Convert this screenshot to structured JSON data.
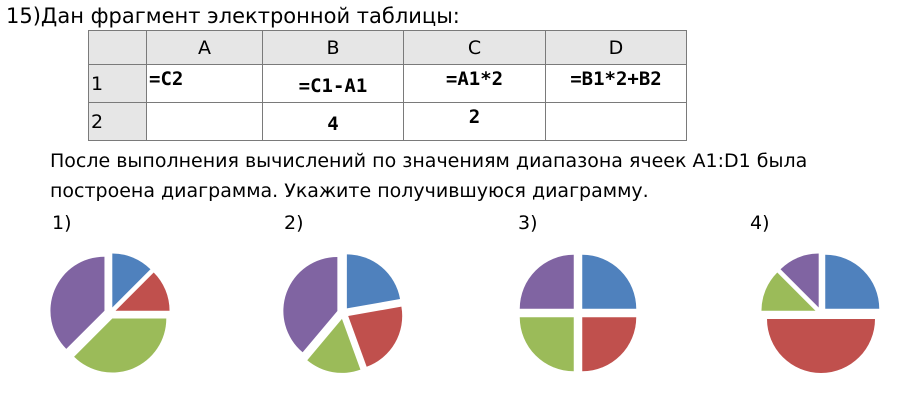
{
  "task": {
    "title": "15)Дан фрагмент электронной таблицы:",
    "question_line1": "После выполнения вычислений по значениям диапазона ячеек A1:D1 была",
    "question_line2": "построена диаграмма. Укажите получившуюся диаграмму."
  },
  "table": {
    "column_headers": [
      "A",
      "B",
      "C",
      "D"
    ],
    "row_headers": [
      "1",
      "2"
    ],
    "rows": [
      [
        "=C2",
        "=C1-A1",
        "=A1*2",
        "=B1*2+B2"
      ],
      [
        "",
        "4",
        "2",
        ""
      ]
    ]
  },
  "options": [
    {
      "label": "1)"
    },
    {
      "label": "2)"
    },
    {
      "label": "3)"
    },
    {
      "label": "4)"
    }
  ],
  "colors": {
    "blue": "#4f81bd",
    "red": "#c0504d",
    "green": "#9bbb59",
    "purple": "#8064a2",
    "header_bg": "#e6e6e6"
  },
  "chart_data": [
    {
      "type": "pie",
      "values": [
        1,
        1,
        3,
        3
      ],
      "colors": [
        "blue",
        "red",
        "green",
        "purple"
      ]
    },
    {
      "type": "pie",
      "values": [
        2,
        2,
        1.5,
        3.5
      ],
      "colors": [
        "blue",
        "red",
        "green",
        "purple"
      ]
    },
    {
      "type": "pie",
      "values": [
        1,
        1,
        1,
        1
      ],
      "colors": [
        "blue",
        "red",
        "green",
        "purple"
      ]
    },
    {
      "type": "pie",
      "values": [
        2,
        4,
        1,
        1
      ],
      "colors": [
        "blue",
        "red",
        "green",
        "purple"
      ]
    }
  ]
}
